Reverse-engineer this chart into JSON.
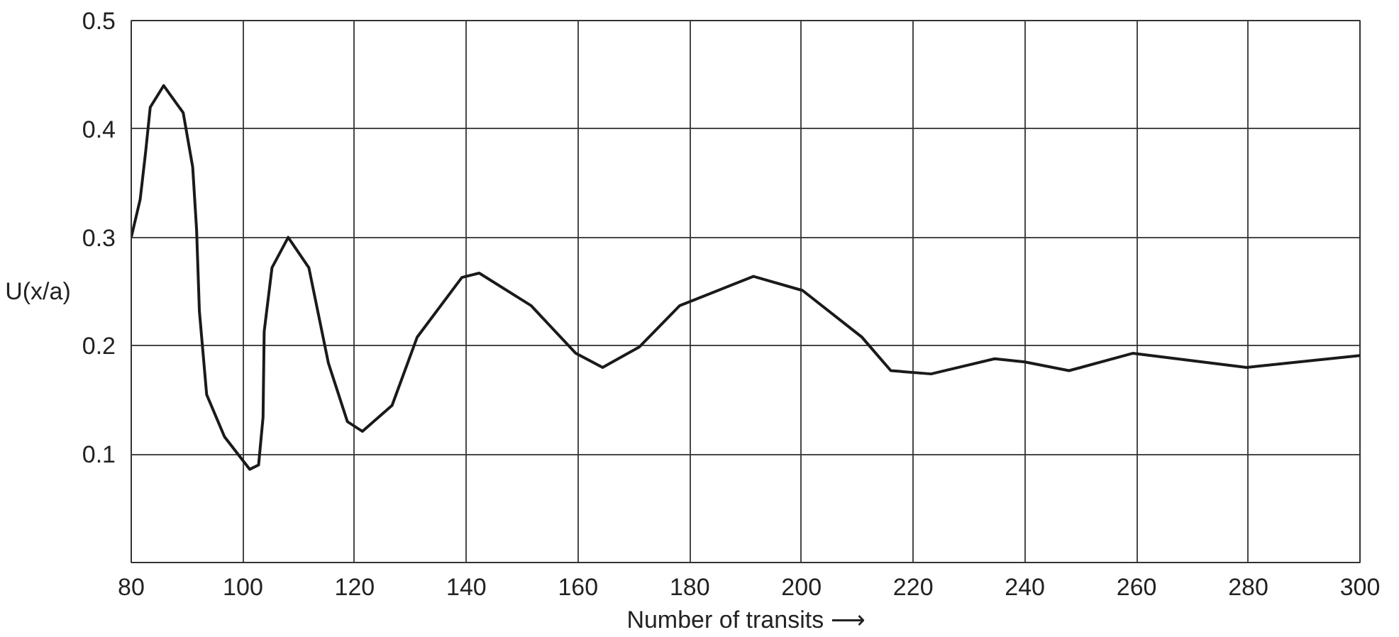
{
  "chart_data": {
    "type": "line",
    "xlabel": "Number of transits ⟶",
    "ylabel": "U(x/a)",
    "x": [
      80,
      81.6,
      82.6,
      83.4,
      85.8,
      89.3,
      91,
      91.7,
      92.2,
      93.5,
      96.7,
      101.2,
      102.8,
      103.6,
      103.8,
      105.2,
      108.1,
      111.8,
      115.3,
      118.7,
      121.4,
      126.7,
      131.2,
      139.2,
      142.3,
      151.6,
      159.6,
      164.4,
      171,
      178.2,
      191.4,
      200.2,
      210.8,
      216,
      223.2,
      234.6,
      240,
      247.9,
      259.3,
      279.7,
      300
    ],
    "series": [
      {
        "color": "#1a1a1a",
        "values": [
          0.3,
          0.335,
          0.38,
          0.42,
          0.44,
          0.415,
          0.365,
          0.307,
          0.232,
          0.155,
          0.116,
          0.086,
          0.09,
          0.134,
          0.213,
          0.272,
          0.3,
          0.272,
          0.184,
          0.13,
          0.121,
          0.145,
          0.208,
          0.263,
          0.267,
          0.237,
          0.193,
          0.18,
          0.199,
          0.237,
          0.264,
          0.251,
          0.208,
          0.177,
          0.174,
          0.188,
          0.185,
          0.177,
          0.193,
          0.18,
          0.191
        ]
      }
    ],
    "xlim": [
      80,
      300
    ],
    "ylim": [
      0,
      0.5
    ],
    "xticks": [
      80,
      100,
      120,
      140,
      160,
      180,
      200,
      220,
      240,
      260,
      280,
      300
    ],
    "yticks": [
      {
        "value": 0,
        "label": null
      },
      0.1,
      0.2,
      0.3,
      0.4,
      0.5
    ],
    "grid": true,
    "marker": "none",
    "line_style": "solid"
  }
}
